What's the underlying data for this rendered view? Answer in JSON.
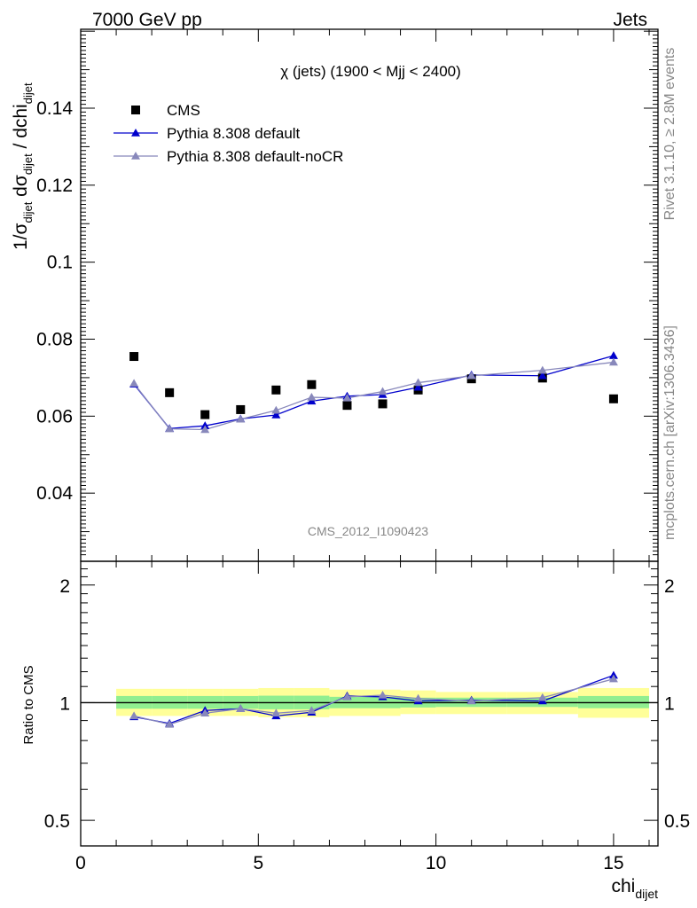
{
  "header": {
    "left": "7000 GeV pp",
    "right": "Jets"
  },
  "side_text": {
    "rivet": "Rivet 3.1.10, ≥ 2.8M events",
    "mcplots": "mcplots.cern.ch [arXiv:1306.3436]"
  },
  "chart_data": [
    {
      "type": "scatter",
      "title": "χ (jets) (1900 < Mjj < 2400)",
      "watermark": "CMS_2012_I1090423",
      "ylabel_parts": {
        "a": "1/σ",
        "a_sub": "dijet",
        "b": " dσ",
        "b_sub": "dijet",
        "c": " / dchi",
        "c_sub": "dijet"
      },
      "xlim": [
        0,
        16.25
      ],
      "ylim": [
        0.0223,
        0.1605
      ],
      "yticks": [
        0.04,
        0.06,
        0.08,
        0.1,
        0.12,
        0.14
      ],
      "ytick_labels": [
        "0.04",
        "0.06",
        "0.08",
        "0.1",
        "0.12",
        "0.14"
      ],
      "x": [
        1.5,
        2.5,
        3.5,
        4.5,
        5.5,
        6.5,
        7.5,
        8.5,
        9.5,
        11,
        13,
        15
      ],
      "series": [
        {
          "name": "CMS",
          "marker": "square",
          "color": "#000000",
          "values": [
            0.0755,
            0.0661,
            0.0604,
            0.0617,
            0.0668,
            0.0682,
            0.0628,
            0.0632,
            0.0668,
            0.0697,
            0.0699,
            0.0645
          ]
        },
        {
          "name": "Pythia 8.308 default",
          "marker": "triangle",
          "color": "#0000cc",
          "values": [
            0.0683,
            0.0568,
            0.0575,
            0.0593,
            0.0603,
            0.0639,
            0.0652,
            0.0656,
            0.0675,
            0.0707,
            0.0705,
            0.0757
          ]
        },
        {
          "name": "Pythia 8.308 default-noCR",
          "marker": "triangle",
          "color": "#8888bb",
          "values": [
            0.0685,
            0.0567,
            0.0565,
            0.0592,
            0.0615,
            0.0649,
            0.0647,
            0.0664,
            0.0687,
            0.0705,
            0.0719,
            0.074
          ]
        }
      ]
    },
    {
      "type": "scatter",
      "ylabel": "Ratio to CMS",
      "xlabel": "chi",
      "xlabel_sub": "dijet",
      "xlim": [
        0,
        16.25
      ],
      "ylim": [
        0.43,
        2.3
      ],
      "log_y": true,
      "xticks": [
        0,
        5,
        10,
        15
      ],
      "xtick_labels": [
        "0",
        "5",
        "10",
        "15"
      ],
      "yticks": [
        0.5,
        1,
        2
      ],
      "ytick_labels": [
        "0.5",
        "1",
        "2"
      ],
      "bands": {
        "edges": [
          1,
          2,
          3,
          4,
          5,
          6,
          7,
          8,
          9,
          10,
          12,
          14,
          16
        ],
        "yellow_lo": [
          0.925,
          0.925,
          0.925,
          0.925,
          0.918,
          0.918,
          0.925,
          0.925,
          0.935,
          0.935,
          0.935,
          0.915
        ],
        "yellow_hi": [
          1.085,
          1.085,
          1.085,
          1.085,
          1.09,
          1.09,
          1.08,
          1.08,
          1.075,
          1.065,
          1.065,
          1.09
        ],
        "green_lo": [
          0.965,
          0.965,
          0.965,
          0.965,
          0.962,
          0.962,
          0.968,
          0.968,
          0.972,
          0.975,
          0.975,
          0.968
        ],
        "green_hi": [
          1.04,
          1.04,
          1.04,
          1.04,
          1.042,
          1.042,
          1.035,
          1.035,
          1.03,
          1.03,
          1.03,
          1.04
        ],
        "yellow_color": "#ffff99",
        "green_color": "#90ee90"
      },
      "x": [
        1.5,
        2.5,
        3.5,
        4.5,
        5.5,
        6.5,
        7.5,
        8.5,
        9.5,
        11,
        13,
        15
      ],
      "series": [
        {
          "name": "Pythia 8.308 default",
          "marker": "triangle",
          "color": "#0000cc",
          "values": [
            0.92,
            0.885,
            0.955,
            0.965,
            0.925,
            0.945,
            1.04,
            1.035,
            1.01,
            1.015,
            1.01,
            1.175
          ]
        },
        {
          "name": "Pythia 8.308 default-noCR",
          "marker": "triangle",
          "color": "#8888bb",
          "values": [
            0.925,
            0.88,
            0.94,
            0.965,
            0.94,
            0.955,
            1.035,
            1.045,
            1.025,
            1.01,
            1.03,
            1.15
          ]
        }
      ]
    }
  ]
}
